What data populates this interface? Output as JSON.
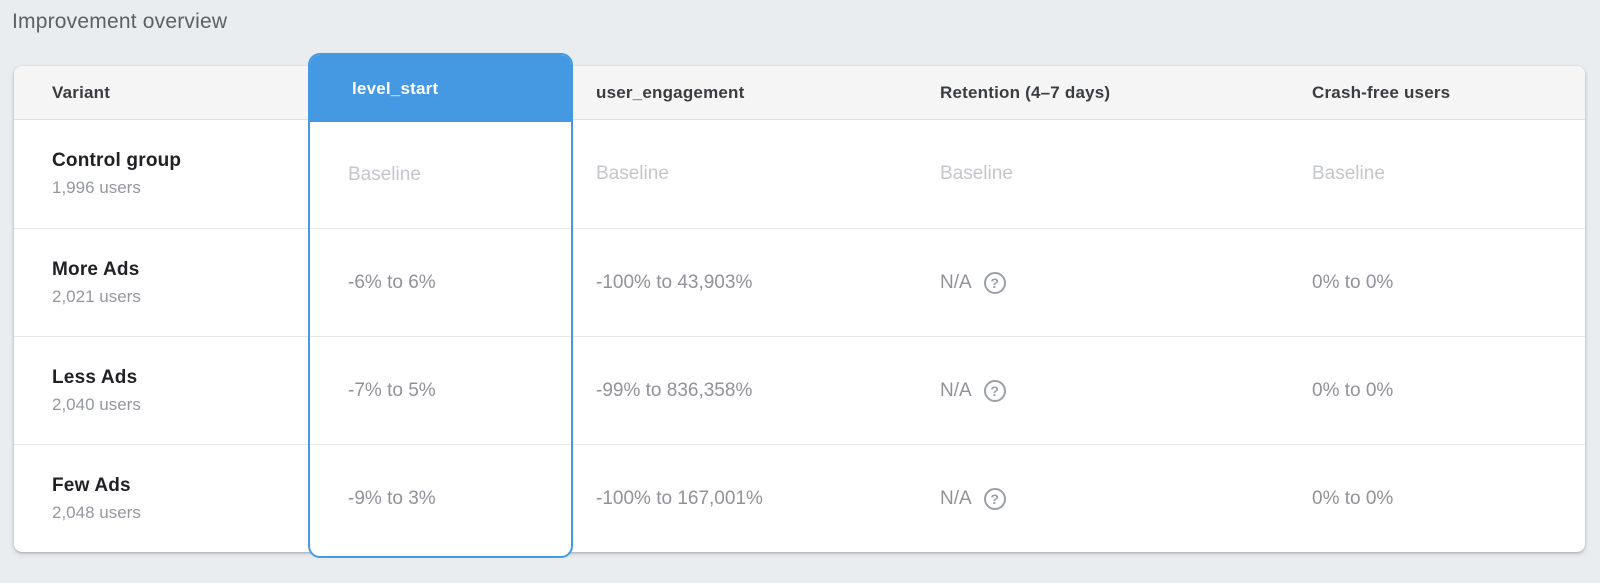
{
  "page": {
    "title": "Improvement overview"
  },
  "colors": {
    "accent_blue": "#4499e2",
    "page_background": "#eaedf0",
    "header_background": "#f5f5f6",
    "baseline_text": "#c3c6ca",
    "value_text": "#919297"
  },
  "table": {
    "columns": {
      "variant": {
        "label": "Variant"
      },
      "level_start": {
        "label": "level_start",
        "selected": true
      },
      "user_engagement": {
        "label": "user_engagement"
      },
      "retention": {
        "label": "Retention (4–7 days)"
      },
      "crash_free": {
        "label": "Crash-free users"
      }
    },
    "help_glyph": "?",
    "rows": [
      {
        "name": "Control group",
        "users": "1,996 users",
        "level_start": "Baseline",
        "user_engagement": "Baseline",
        "retention": "Baseline",
        "crash_free": "Baseline"
      },
      {
        "name": "More Ads",
        "users": "2,021 users",
        "level_start": "-6% to 6%",
        "user_engagement": "-100% to 43,903%",
        "retention": "N/A",
        "crash_free": "0% to 0%"
      },
      {
        "name": "Less Ads",
        "users": "2,040 users",
        "level_start": "-7% to 5%",
        "user_engagement": "-99% to 836,358%",
        "retention": "N/A",
        "crash_free": "0% to 0%"
      },
      {
        "name": "Few Ads",
        "users": "2,048 users",
        "level_start": "-9% to 3%",
        "user_engagement": "-100% to 167,001%",
        "retention": "N/A",
        "crash_free": "0% to 0%"
      }
    ]
  }
}
